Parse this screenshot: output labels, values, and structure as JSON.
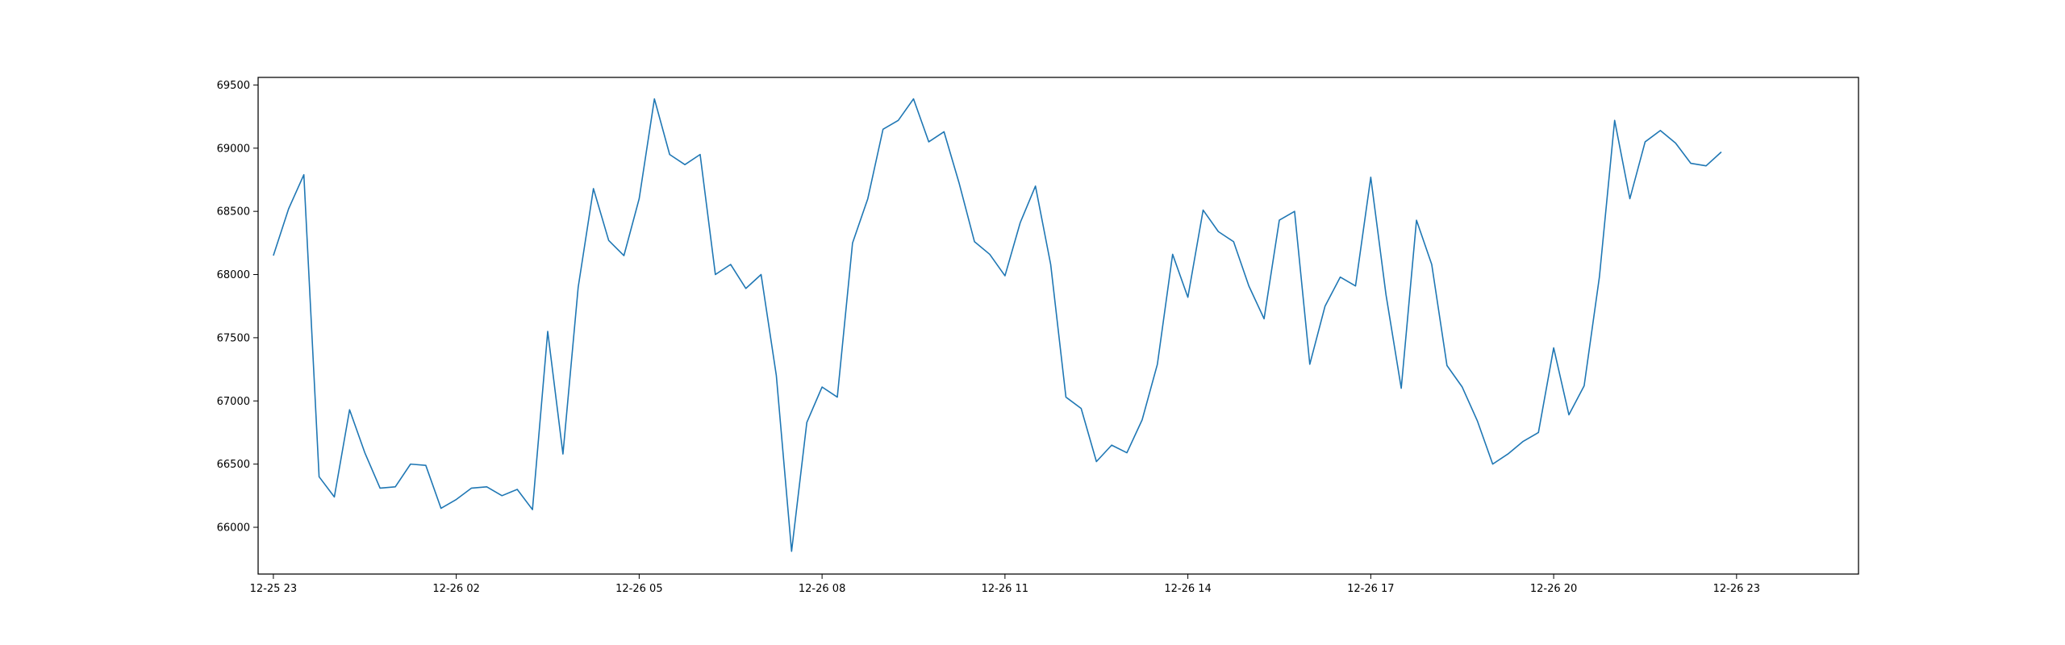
{
  "chart_data": {
    "type": "line",
    "title": "",
    "xlabel": "",
    "ylabel": "",
    "x_start": "12-25 23:00",
    "x_end": "12-26 23:45",
    "xlim": [
      "12-25 22:45",
      "12-27 01:00"
    ],
    "ylim": [
      65630,
      69560
    ],
    "x_ticks": [
      {
        "label": "12-25 23",
        "time": "12-25 23:00"
      },
      {
        "label": "12-26 02",
        "time": "12-26 02:00"
      },
      {
        "label": "12-26 05",
        "time": "12-26 05:00"
      },
      {
        "label": "12-26 08",
        "time": "12-26 08:00"
      },
      {
        "label": "12-26 11",
        "time": "12-26 11:00"
      },
      {
        "label": "12-26 14",
        "time": "12-26 14:00"
      },
      {
        "label": "12-26 17",
        "time": "12-26 17:00"
      },
      {
        "label": "12-26 20",
        "time": "12-26 20:00"
      },
      {
        "label": "12-26 23",
        "time": "12-26 23:00"
      }
    ],
    "y_ticks": [
      {
        "label": "66000",
        "value": 66000
      },
      {
        "label": "66500",
        "value": 66500
      },
      {
        "label": "67000",
        "value": 67000
      },
      {
        "label": "67500",
        "value": 67500
      },
      {
        "label": "68000",
        "value": 68000
      },
      {
        "label": "68500",
        "value": 68500
      },
      {
        "label": "69000",
        "value": 69000
      },
      {
        "label": "69500",
        "value": 69500
      }
    ],
    "grid": false,
    "series": [
      {
        "color": "#1f77b4",
        "values": [
          68150,
          68520,
          68790,
          66400,
          66240,
          66930,
          66590,
          66310,
          66320,
          66500,
          66490,
          66150,
          66220,
          66310,
          66320,
          66250,
          66300,
          66140,
          67550,
          66580,
          67900,
          68680,
          68270,
          68150,
          68600,
          69390,
          68950,
          68870,
          68950,
          68000,
          68080,
          67890,
          68000,
          67200,
          65810,
          66830,
          67110,
          67030,
          68250,
          68600,
          69150,
          69220,
          69390,
          69050,
          69130,
          68720,
          68260,
          68160,
          67990,
          68410,
          68700,
          68080,
          67030,
          66940,
          66520,
          66650,
          66590,
          66850,
          67290,
          68160,
          67820,
          68510,
          68340,
          68260,
          67910,
          67650,
          68430,
          68500,
          67290,
          67750,
          67980,
          67910,
          68770,
          67840,
          67100,
          68430,
          68080,
          67280,
          67110,
          66840,
          66500,
          66580,
          66680,
          66750,
          67420,
          66890,
          67120,
          67980,
          69220,
          68600,
          69050,
          69140,
          69040,
          68880,
          68860,
          68970
        ]
      }
    ]
  }
}
